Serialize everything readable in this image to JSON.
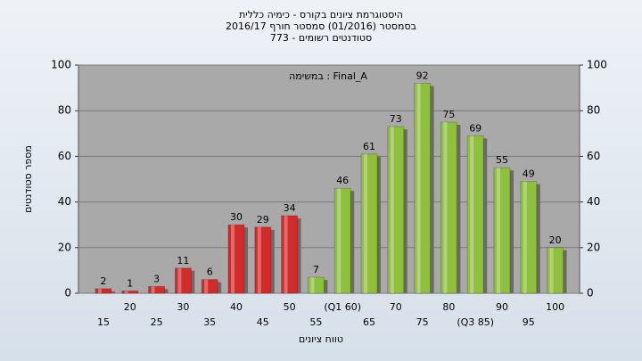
{
  "chart_data": {
    "type": "bar",
    "title": [
      "היסטוגרמת ציונים בקורס - כימיה כללית",
      "בסמסטר  (01/2016)  סמסטר חורף 2016/17",
      "סטודנטים רשומים - 773"
    ],
    "annotation": "במשימה : Final_A",
    "y_label": "מספר סטודנטים",
    "x_label": "טווח ציונים",
    "categories": [
      "15",
      "20",
      "25",
      "30",
      "35",
      "40",
      "45",
      "50",
      "55",
      "(Q1 60)",
      "65",
      "70",
      "75",
      "80",
      "(Q3 85)",
      "90",
      "95",
      "100"
    ],
    "values": [
      2,
      1,
      3,
      11,
      6,
      30,
      29,
      34,
      7,
      46,
      61,
      73,
      92,
      75,
      69,
      55,
      49,
      20
    ],
    "colors": [
      "#d42a2a",
      "#d42a2a",
      "#d42a2a",
      "#d42a2a",
      "#d42a2a",
      "#d42a2a",
      "#d42a2a",
      "#d42a2a",
      "#8fc03c",
      "#8fc03c",
      "#8fc03c",
      "#8fc03c",
      "#8fc03c",
      "#8fc03c",
      "#8fc03c",
      "#8fc03c",
      "#8fc03c",
      "#8fc03c"
    ],
    "ylim": [
      0,
      100
    ],
    "yticks": [
      0,
      20,
      40,
      60,
      80,
      100
    ],
    "grid": true
  }
}
